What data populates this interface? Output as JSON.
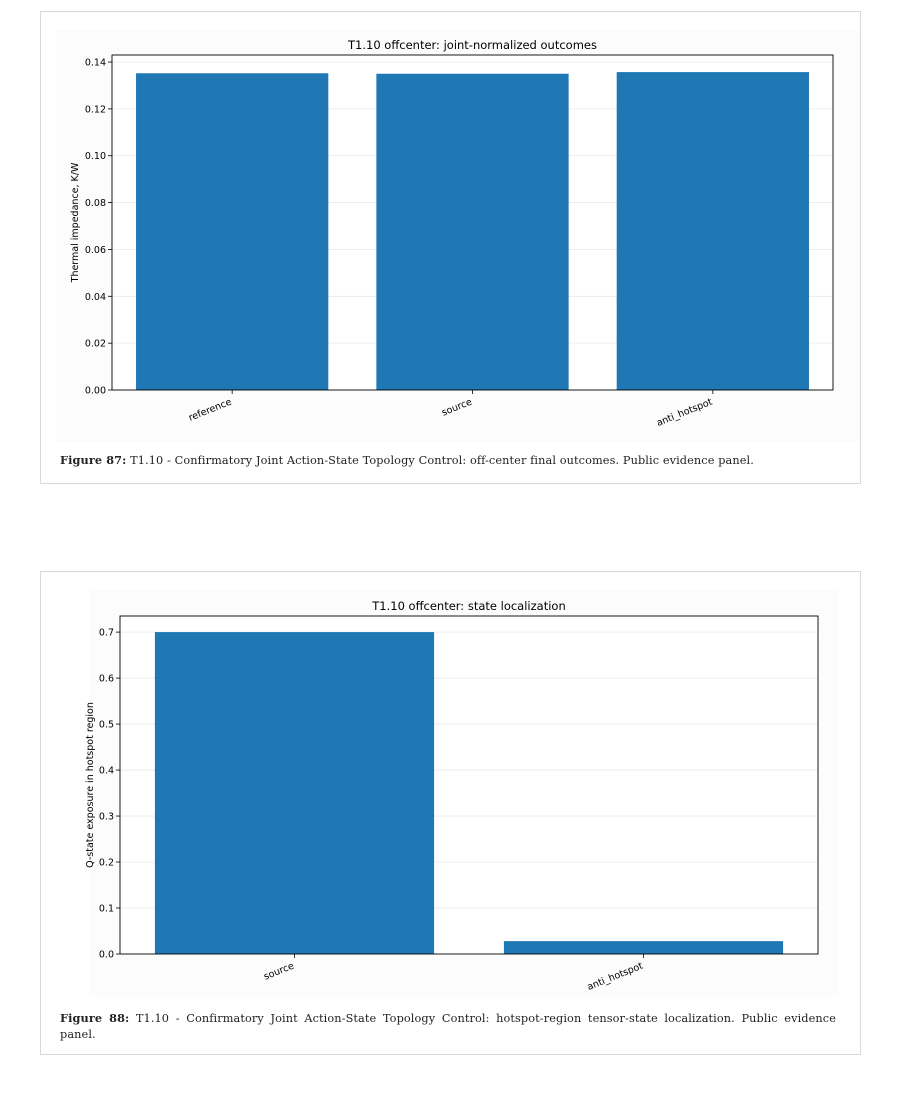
{
  "figures": [
    {
      "caption_label": "Figure 87:",
      "caption_text": "T1.10 - Confirmatory Joint Action-State Topology Control: off-center final outcomes. Public evidence panel."
    },
    {
      "caption_label": "Figure 88:",
      "caption_text": "T1.10 - Confirmatory Joint Action-State Topology Control: hotspot-region tensor-state localization. Public evidence panel."
    }
  ],
  "colors": {
    "bar": "#1f77b4"
  },
  "chart_data": [
    {
      "type": "bar",
      "title": "T1.10 offcenter: joint-normalized outcomes",
      "xlabel": "",
      "ylabel": "Thermal impedance, K/W",
      "categories": [
        "reference",
        "source",
        "anti_hotspot"
      ],
      "values": [
        0.1352,
        0.135,
        0.1357
      ],
      "ylim": [
        0,
        0.143
      ],
      "yticks": [
        0.0,
        0.02,
        0.04,
        0.06,
        0.08,
        0.1,
        0.12,
        0.14
      ],
      "ytick_labels": [
        "0.00",
        "0.02",
        "0.04",
        "0.06",
        "0.08",
        "0.10",
        "0.12",
        "0.14"
      ],
      "grid": true
    },
    {
      "type": "bar",
      "title": "T1.10 offcenter: state localization",
      "xlabel": "",
      "ylabel": "Q-state exposure in hotspot region",
      "categories": [
        "source",
        "anti_hotspot"
      ],
      "values": [
        0.7,
        0.028
      ],
      "ylim": [
        0,
        0.735
      ],
      "yticks": [
        0.0,
        0.1,
        0.2,
        0.3,
        0.4,
        0.5,
        0.6,
        0.7
      ],
      "ytick_labels": [
        "0.0",
        "0.1",
        "0.2",
        "0.3",
        "0.4",
        "0.5",
        "0.6",
        "0.7"
      ],
      "grid": true
    }
  ]
}
